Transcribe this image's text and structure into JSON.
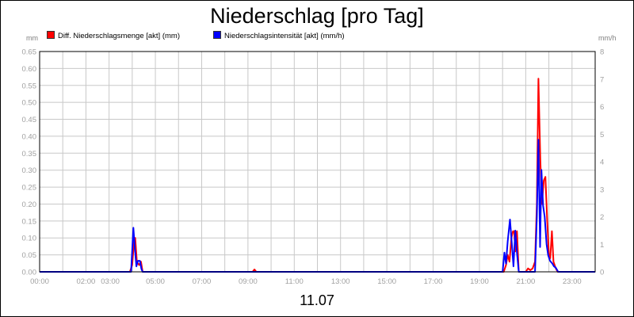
{
  "chart_data": {
    "type": "line",
    "title": "Niederschlag [pro Tag]",
    "xlabel": "11.07",
    "y_left_unit": "mm",
    "y_right_unit": "mm/h",
    "x_ticks": [
      "00:00",
      "02:00",
      "03:00",
      "05:00",
      "07:00",
      "09:00",
      "11:00",
      "13:00",
      "15:00",
      "17:00",
      "19:00",
      "21:00",
      "23:00"
    ],
    "x_tick_hours": [
      0,
      2,
      3.05,
      5,
      7,
      9,
      11,
      13,
      15,
      17,
      19,
      21,
      23
    ],
    "xlim": [
      0,
      24
    ],
    "ylim_left": [
      0,
      0.65
    ],
    "ylim_right": [
      0,
      8
    ],
    "y_left_ticks": [
      "0.00",
      "0.05",
      "0.10",
      "0.15",
      "0.20",
      "0.25",
      "0.30",
      "0.35",
      "0.40",
      "0.45",
      "0.50",
      "0.55",
      "0.60",
      "0.65"
    ],
    "y_right_ticks": [
      "0",
      "1",
      "2",
      "3",
      "4",
      "5",
      "6",
      "7",
      "8"
    ],
    "grid": true,
    "legend_position": "top-left",
    "series": [
      {
        "name": "Diff. Niederschlagsmenge [akt] (mm)",
        "axis": "left",
        "color": "#ff0000",
        "points": [
          [
            0,
            0
          ],
          [
            3.9,
            0
          ],
          [
            4.0,
            0.02
          ],
          [
            4.08,
            0.09
          ],
          [
            4.13,
            0.1
          ],
          [
            4.2,
            0.03
          ],
          [
            4.3,
            0.02
          ],
          [
            4.38,
            0.03
          ],
          [
            4.45,
            0.0
          ],
          [
            4.6,
            0
          ],
          [
            9.2,
            0
          ],
          [
            9.28,
            0.007
          ],
          [
            9.36,
            0
          ],
          [
            20.05,
            0
          ],
          [
            20.15,
            0.02
          ],
          [
            20.22,
            0.05
          ],
          [
            20.3,
            0.03
          ],
          [
            20.38,
            0.1
          ],
          [
            20.45,
            0.12
          ],
          [
            20.5,
            0.12
          ],
          [
            20.55,
            0.06
          ],
          [
            20.62,
            0.12
          ],
          [
            20.7,
            0.0
          ],
          [
            21.0,
            0
          ],
          [
            21.1,
            0.01
          ],
          [
            21.2,
            0.005
          ],
          [
            21.3,
            0.01
          ],
          [
            21.4,
            0.03
          ],
          [
            21.48,
            0.2
          ],
          [
            21.55,
            0.57
          ],
          [
            21.63,
            0.33
          ],
          [
            21.7,
            0.2
          ],
          [
            21.78,
            0.27
          ],
          [
            21.85,
            0.28
          ],
          [
            21.93,
            0.15
          ],
          [
            22.0,
            0.05
          ],
          [
            22.06,
            0.04
          ],
          [
            22.13,
            0.12
          ],
          [
            22.2,
            0.03
          ],
          [
            22.3,
            0.01
          ],
          [
            22.38,
            0.0
          ],
          [
            24,
            0
          ]
        ]
      },
      {
        "name": "Niederschlagsintensität [akt] (mm/h)",
        "axis": "right",
        "color": "#0000ff",
        "points": [
          [
            0,
            0
          ],
          [
            3.95,
            0
          ],
          [
            4.05,
            1.6
          ],
          [
            4.12,
            0.8
          ],
          [
            4.18,
            0.2
          ],
          [
            4.25,
            0.4
          ],
          [
            4.33,
            0.4
          ],
          [
            4.4,
            0.1
          ],
          [
            4.45,
            0
          ],
          [
            4.6,
            0
          ],
          [
            20.0,
            0
          ],
          [
            20.08,
            0.7
          ],
          [
            20.15,
            0.3
          ],
          [
            20.22,
            1.1
          ],
          [
            20.32,
            1.9
          ],
          [
            20.4,
            1.0
          ],
          [
            20.47,
            0.2
          ],
          [
            20.55,
            1.5
          ],
          [
            20.62,
            0.7
          ],
          [
            20.7,
            0
          ],
          [
            21.4,
            0
          ],
          [
            21.48,
            2.0
          ],
          [
            21.55,
            4.8
          ],
          [
            21.62,
            0.9
          ],
          [
            21.68,
            3.7
          ],
          [
            21.75,
            2.4
          ],
          [
            21.82,
            2.0
          ],
          [
            21.9,
            1.0
          ],
          [
            21.97,
            0.6
          ],
          [
            22.05,
            0.4
          ],
          [
            22.15,
            0.3
          ],
          [
            22.22,
            0.2
          ],
          [
            22.3,
            0.15
          ],
          [
            22.4,
            0
          ],
          [
            24,
            0
          ]
        ]
      }
    ]
  }
}
